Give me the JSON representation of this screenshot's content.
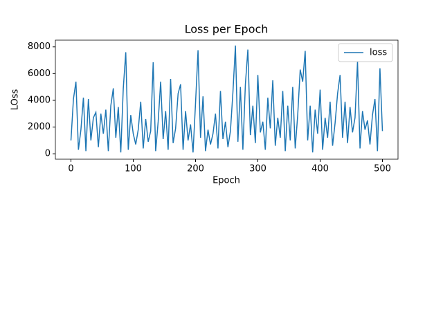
{
  "chart_data": {
    "type": "line",
    "title": "Loss per Epoch",
    "x_label": "Epoch",
    "y_label": "LOss",
    "x": [
      0,
      4,
      8,
      12,
      16,
      20,
      24,
      28,
      32,
      36,
      40,
      44,
      48,
      52,
      56,
      60,
      64,
      68,
      72,
      76,
      80,
      84,
      88,
      92,
      96,
      100,
      104,
      108,
      112,
      116,
      120,
      124,
      128,
      132,
      136,
      140,
      144,
      148,
      152,
      156,
      160,
      164,
      168,
      172,
      176,
      180,
      184,
      188,
      192,
      196,
      200,
      204,
      208,
      212,
      216,
      220,
      224,
      228,
      232,
      236,
      240,
      244,
      248,
      252,
      256,
      260,
      264,
      268,
      272,
      276,
      280,
      284,
      288,
      292,
      296,
      300,
      304,
      308,
      312,
      316,
      320,
      324,
      328,
      332,
      336,
      340,
      344,
      348,
      352,
      356,
      360,
      364,
      368,
      372,
      376,
      380,
      384,
      388,
      392,
      396,
      400,
      404,
      408,
      412,
      416,
      420,
      424,
      428,
      432,
      436,
      440,
      444,
      448,
      452,
      456,
      460,
      464,
      468,
      472,
      476,
      480,
      484,
      488,
      492,
      496,
      500
    ],
    "series": [
      {
        "name": "loss",
        "color": "#1f77b4",
        "values": [
          1000,
          4100,
          5400,
          300,
          1800,
          4200,
          200,
          4100,
          1000,
          2700,
          3100,
          500,
          3000,
          1500,
          3300,
          200,
          3600,
          4900,
          1200,
          3500,
          100,
          4900,
          7600,
          300,
          2900,
          1500,
          700,
          1800,
          3900,
          400,
          2600,
          900,
          1700,
          6850,
          200,
          2400,
          5400,
          1100,
          3200,
          300,
          5600,
          800,
          1900,
          4500,
          5200,
          300,
          3200,
          1000,
          2200,
          100,
          3800,
          7750,
          1200,
          4300,
          200,
          1800,
          700,
          1500,
          3000,
          400,
          4700,
          1100,
          2400,
          500,
          1700,
          4600,
          8100,
          900,
          5000,
          300,
          5200,
          7800,
          1400,
          3600,
          800,
          5900,
          1600,
          2400,
          300,
          4200,
          1900,
          5500,
          600,
          2700,
          1200,
          4700,
          200,
          3600,
          1000,
          5000,
          400,
          2900,
          6300,
          5400,
          7700,
          1000,
          3600,
          100,
          3300,
          1500,
          4800,
          300,
          2700,
          1200,
          3900,
          600,
          2300,
          4500,
          5900,
          1200,
          3900,
          800,
          3500,
          1600,
          2700,
          6900,
          400,
          3200,
          1800,
          2500,
          700,
          2900,
          4100,
          200,
          6400,
          1700
        ]
      }
    ],
    "xlim": [
      -25,
      525
    ],
    "ylim": [
      -405,
      8505
    ],
    "xticks": [
      0,
      100,
      200,
      300,
      400,
      500
    ],
    "yticks": [
      0,
      2000,
      4000,
      6000,
      8000
    ],
    "legend": "upper right"
  }
}
